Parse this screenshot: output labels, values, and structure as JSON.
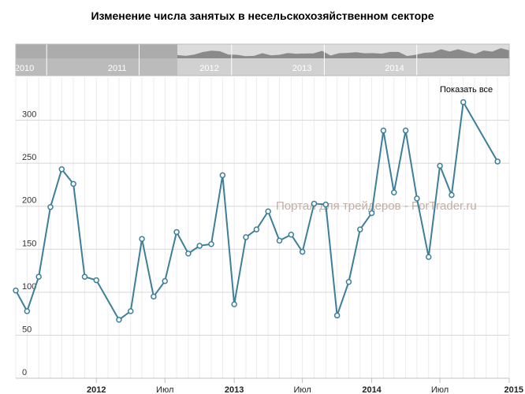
{
  "chart_data": {
    "type": "line",
    "title": "Изменение числа занятых в несельскохозяйственном секторе",
    "y_ticks": [
      0,
      50,
      100,
      150,
      200,
      250,
      300
    ],
    "ylim": [
      0,
      350
    ],
    "x_labels": [
      {
        "date": "2012-01-01",
        "label": "2012",
        "bold": true
      },
      {
        "date": "2012-07-01",
        "label": "Июл",
        "bold": false
      },
      {
        "date": "2013-01-01",
        "label": "2013",
        "bold": true
      },
      {
        "date": "2013-07-01",
        "label": "Июл",
        "bold": false
      },
      {
        "date": "2014-01-01",
        "label": "2014",
        "bold": true
      },
      {
        "date": "2014-07-01",
        "label": "Июл",
        "bold": false
      },
      {
        "date": "2015-01-01",
        "label": "2015",
        "bold": true
      }
    ],
    "xlim": [
      "2011-06-01",
      "2015-01-01"
    ],
    "series": [
      {
        "color": "#3d7f99",
        "points": [
          {
            "x": "2011-06-01",
            "y": 102
          },
          {
            "x": "2011-07-01",
            "y": 78
          },
          {
            "x": "2011-08-01",
            "y": 118
          },
          {
            "x": "2011-09-01",
            "y": 199
          },
          {
            "x": "2011-10-01",
            "y": 243
          },
          {
            "x": "2011-11-01",
            "y": 226
          },
          {
            "x": "2011-12-01",
            "y": 118
          },
          {
            "x": "2012-01-01",
            "y": 114
          },
          {
            "x": "2012-03-01",
            "y": 68
          },
          {
            "x": "2012-04-01",
            "y": 78
          },
          {
            "x": "2012-05-01",
            "y": 162
          },
          {
            "x": "2012-06-01",
            "y": 95
          },
          {
            "x": "2012-07-01",
            "y": 113
          },
          {
            "x": "2012-08-01",
            "y": 170
          },
          {
            "x": "2012-09-01",
            "y": 145
          },
          {
            "x": "2012-10-01",
            "y": 154
          },
          {
            "x": "2012-11-01",
            "y": 156
          },
          {
            "x": "2012-12-01",
            "y": 236
          },
          {
            "x": "2013-01-01",
            "y": 86
          },
          {
            "x": "2013-02-01",
            "y": 164
          },
          {
            "x": "2013-03-01",
            "y": 173
          },
          {
            "x": "2013-04-01",
            "y": 194
          },
          {
            "x": "2013-05-01",
            "y": 160
          },
          {
            "x": "2013-06-01",
            "y": 167
          },
          {
            "x": "2013-07-01",
            "y": 147
          },
          {
            "x": "2013-08-01",
            "y": 203
          },
          {
            "x": "2013-09-01",
            "y": 202
          },
          {
            "x": "2013-10-01",
            "y": 73
          },
          {
            "x": "2013-11-01",
            "y": 112
          },
          {
            "x": "2013-12-01",
            "y": 173
          },
          {
            "x": "2014-01-01",
            "y": 192
          },
          {
            "x": "2014-02-01",
            "y": 288
          },
          {
            "x": "2014-03-01",
            "y": 216
          },
          {
            "x": "2014-04-01",
            "y": 288
          },
          {
            "x": "2014-05-01",
            "y": 209
          },
          {
            "x": "2014-06-01",
            "y": 141
          },
          {
            "x": "2014-07-01",
            "y": 247
          },
          {
            "x": "2014-08-01",
            "y": 213
          },
          {
            "x": "2014-09-01",
            "y": 321
          },
          {
            "x": "2014-12-01",
            "y": 252
          }
        ]
      }
    ],
    "grid": true
  },
  "navigator": {
    "labels": [
      {
        "label": "2010",
        "date": "2010-01-01"
      },
      {
        "label": "2011",
        "date": "2011-01-01"
      },
      {
        "label": "2012",
        "date": "2012-01-01"
      },
      {
        "label": "2013",
        "date": "2013-01-01"
      },
      {
        "label": "2014",
        "date": "2014-01-01"
      }
    ]
  },
  "ui": {
    "show_all_label": "Показать все",
    "watermark": "Портал для трейдеров - ForTrader.ru"
  }
}
